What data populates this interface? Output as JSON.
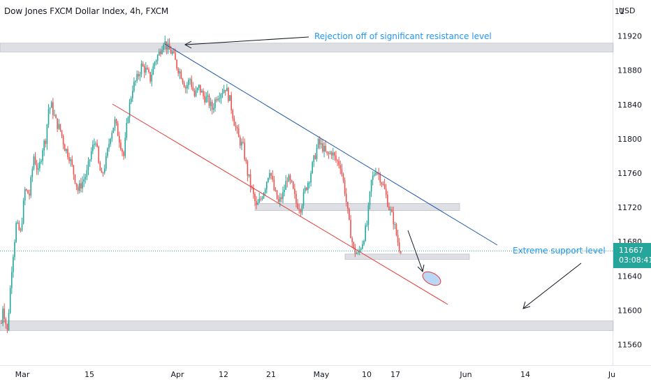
{
  "header": {
    "title": "Dow Jones FXCM Dollar Index, 4h, FXCM",
    "currency": "USD"
  },
  "price_tag": {
    "price": "11667",
    "countdown": "03:08:41",
    "color": "#26a69a"
  },
  "annotations": {
    "resistance": "Rejection off of significant resistance level",
    "support": "Extreme support level"
  },
  "colors": {
    "up": "#26a69a",
    "down": "#ef5350",
    "upper_trendline": "#1e5aa8",
    "lower_trendline": "#e53935",
    "zone": "#d1d4dc",
    "annotation": "#2196f3"
  },
  "chart_data": {
    "type": "candlestick",
    "title": "Dow Jones FXCM Dollar Index, 4h, FXCM",
    "y_axis": {
      "ticks": [
        11560,
        11600,
        11640,
        11680,
        11720,
        11760,
        11800,
        11840,
        11880,
        11920
      ],
      "top_label": "11",
      "unit": "USD",
      "range": [
        11536,
        11962
      ]
    },
    "x_axis": {
      "labels": [
        "Mar",
        "15",
        "Apr",
        "12",
        "21",
        "May",
        "10",
        "17",
        "Jun",
        "14",
        "Ju"
      ]
    },
    "last_price": 11667,
    "price_path": [
      [
        0,
        11585
      ],
      [
        1,
        11605
      ],
      [
        4,
        11575
      ],
      [
        7,
        11650
      ],
      [
        10,
        11700
      ],
      [
        13,
        11690
      ],
      [
        16,
        11740
      ],
      [
        19,
        11735
      ],
      [
        22,
        11780
      ],
      [
        25,
        11760
      ],
      [
        28,
        11790
      ],
      [
        30,
        11800
      ],
      [
        32,
        11835
      ],
      [
        34,
        11838
      ],
      [
        37,
        11820
      ],
      [
        40,
        11810
      ],
      [
        43,
        11790
      ],
      [
        46,
        11780
      ],
      [
        49,
        11760
      ],
      [
        52,
        11740
      ],
      [
        55,
        11750
      ],
      [
        58,
        11760
      ],
      [
        61,
        11785
      ],
      [
        64,
        11800
      ],
      [
        66,
        11770
      ],
      [
        68,
        11755
      ],
      [
        71,
        11775
      ],
      [
        74,
        11805
      ],
      [
        77,
        11820
      ],
      [
        80,
        11800
      ],
      [
        83,
        11780
      ],
      [
        86,
        11830
      ],
      [
        89,
        11860
      ],
      [
        92,
        11870
      ],
      [
        95,
        11885
      ],
      [
        98,
        11880
      ],
      [
        101,
        11870
      ],
      [
        104,
        11890
      ],
      [
        107,
        11900
      ],
      [
        110,
        11915
      ],
      [
        113,
        11905
      ],
      [
        116,
        11900
      ],
      [
        119,
        11885
      ],
      [
        122,
        11875
      ],
      [
        125,
        11860
      ],
      [
        128,
        11870
      ],
      [
        131,
        11850
      ],
      [
        134,
        11860
      ],
      [
        137,
        11850
      ],
      [
        140,
        11845
      ],
      [
        143,
        11835
      ],
      [
        146,
        11850
      ],
      [
        149,
        11855
      ],
      [
        152,
        11860
      ],
      [
        155,
        11845
      ],
      [
        158,
        11820
      ],
      [
        161,
        11800
      ],
      [
        164,
        11790
      ],
      [
        167,
        11760
      ],
      [
        170,
        11740
      ],
      [
        173,
        11720
      ],
      [
        176,
        11730
      ],
      [
        179,
        11745
      ],
      [
        182,
        11765
      ],
      [
        185,
        11740
      ],
      [
        188,
        11725
      ],
      [
        191,
        11735
      ],
      [
        194,
        11755
      ],
      [
        197,
        11745
      ],
      [
        200,
        11725
      ],
      [
        203,
        11720
      ],
      [
        206,
        11740
      ],
      [
        209,
        11755
      ],
      [
        212,
        11775
      ],
      [
        215,
        11795
      ],
      [
        218,
        11790
      ],
      [
        221,
        11780
      ],
      [
        224,
        11785
      ],
      [
        227,
        11775
      ],
      [
        230,
        11770
      ],
      [
        233,
        11740
      ],
      [
        236,
        11700
      ],
      [
        239,
        11670
      ],
      [
        242,
        11665
      ],
      [
        245,
        11680
      ],
      [
        248,
        11700
      ],
      [
        251,
        11750
      ],
      [
        254,
        11765
      ],
      [
        257,
        11755
      ],
      [
        260,
        11740
      ],
      [
        263,
        11720
      ],
      [
        266,
        11705
      ],
      [
        269,
        11680
      ],
      [
        271,
        11667
      ]
    ],
    "resistance_zones": [
      {
        "label": "upper",
        "low": 11903,
        "high": 11910
      },
      {
        "label": "mid",
        "low": 11718,
        "high": 11723
      },
      {
        "label": "recent-low",
        "low": 11661,
        "high": 11664
      },
      {
        "label": "lower",
        "low": 11578,
        "high": 11586
      }
    ],
    "trendlines": [
      {
        "name": "upper",
        "from_price": 11925,
        "to_price": 11677
      },
      {
        "name": "lower",
        "from_price": 11847,
        "to_price": 11601
      }
    ]
  }
}
